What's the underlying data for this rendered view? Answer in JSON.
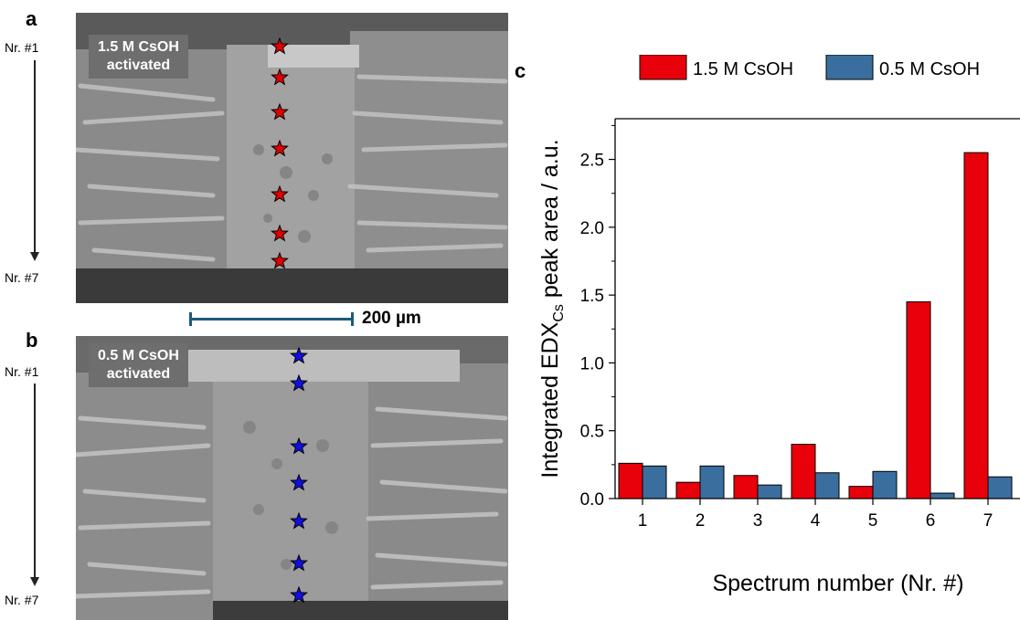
{
  "panels": {
    "a": {
      "letter": "a",
      "nr_top": "Nr. #1",
      "nr_bottom": "Nr. #7",
      "label_line1": "1.5 M CsOH",
      "label_line2": "activated",
      "star_color": "#e00000"
    },
    "b": {
      "letter": "b",
      "nr_top": "Nr. #1",
      "nr_bottom": "Nr. #7",
      "label_line1": "0.5 M CsOH",
      "label_line2": "activated",
      "star_color": "#1010e0"
    },
    "scale_label": "200 µm"
  },
  "chart_data": {
    "panel_letter": "c",
    "type": "bar",
    "categories": [
      "1",
      "2",
      "3",
      "4",
      "5",
      "6",
      "7"
    ],
    "series": [
      {
        "name": "1.5 M CsOH",
        "color": "#e8000b",
        "values": [
          0.26,
          0.12,
          0.17,
          0.4,
          0.09,
          1.45,
          2.55
        ]
      },
      {
        "name": "0.5 M CsOH",
        "color": "#3a6e9e",
        "values": [
          0.24,
          0.24,
          0.1,
          0.19,
          0.2,
          0.04,
          0.16
        ]
      }
    ],
    "xlabel": "Spectrum number (Nr. #)",
    "ylabel_main": "Integrated EDX",
    "ylabel_sub": "Cs",
    "ylabel_rest": " peak area / a.u.",
    "ylim": [
      0,
      2.8
    ],
    "yticks": [
      "0.0",
      "0.5",
      "1.0",
      "1.5",
      "2.0",
      "2.5"
    ],
    "ytick_values": [
      0,
      0.5,
      1.0,
      1.5,
      2.0,
      2.5
    ],
    "legend_position": "top",
    "grid": false
  }
}
